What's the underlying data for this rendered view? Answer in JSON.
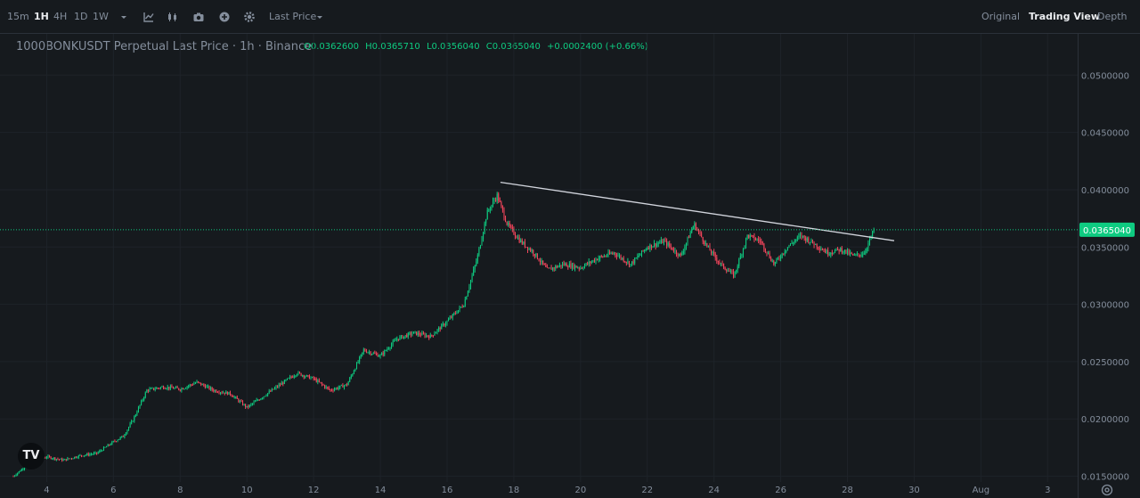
{
  "toolbar": {
    "intervals": [
      "15m",
      "1H",
      "4H",
      "1D",
      "1W"
    ],
    "active_interval": "1H",
    "price_type": "Last Price"
  },
  "view_modes": [
    "Original",
    "Trading View",
    "Depth"
  ],
  "active_view": "Trading View",
  "legend": {
    "title": "1000BONKUSDT Perpetual Last Price · 1h · Binance",
    "open": "O0.0362600",
    "high": "H0.0365710",
    "low": "L0.0356040",
    "close": "C0.0365040",
    "change": "+0.0002400 (+0.66%)"
  },
  "colors": {
    "up": "#0ecb81",
    "down": "#f6465d",
    "background": "#161a1e",
    "grid": "#1e2329",
    "trendline": "#d1d4dc",
    "price_line": "#0ecb81"
  },
  "logo_text": "TV",
  "chart_data": {
    "type": "candlestick",
    "symbol": "1000BONKUSDT Perpetual",
    "interval": "1h",
    "y_ticks": [
      "0.0500000",
      "0.0450000",
      "0.0400000",
      "0.0350000",
      "0.0300000",
      "0.0250000",
      "0.0200000",
      "0.0150000"
    ],
    "y_tick_values": [
      0.05,
      0.045,
      0.04,
      0.035,
      0.03,
      0.025,
      0.02,
      0.015
    ],
    "ylim": [
      0.0145,
      0.0536
    ],
    "x_ticks": [
      "4",
      "6",
      "8",
      "10",
      "12",
      "14",
      "16",
      "18",
      "20",
      "22",
      "24",
      "26",
      "28",
      "30",
      "Aug",
      "3"
    ],
    "x_tick_days": [
      4,
      6,
      8,
      10,
      12,
      14,
      16,
      18,
      20,
      22,
      24,
      26,
      28,
      30,
      32,
      34
    ],
    "xlim_days": [
      2.6,
      34.9
    ],
    "last_price": 0.036504,
    "last_price_label": "0.0365040",
    "price_path": [
      [
        3.0,
        0.015
      ],
      [
        3.5,
        0.0162
      ],
      [
        4.0,
        0.0167
      ],
      [
        4.5,
        0.0164
      ],
      [
        5.0,
        0.0168
      ],
      [
        5.5,
        0.017
      ],
      [
        6.0,
        0.018
      ],
      [
        6.3,
        0.0185
      ],
      [
        6.6,
        0.02
      ],
      [
        7.0,
        0.0225
      ],
      [
        7.5,
        0.0228
      ],
      [
        8.0,
        0.0226
      ],
      [
        8.5,
        0.0232
      ],
      [
        9.0,
        0.0225
      ],
      [
        9.5,
        0.0222
      ],
      [
        10.0,
        0.021
      ],
      [
        10.5,
        0.022
      ],
      [
        11.0,
        0.023
      ],
      [
        11.5,
        0.024
      ],
      [
        12.0,
        0.0235
      ],
      [
        12.5,
        0.0225
      ],
      [
        13.0,
        0.023
      ],
      [
        13.5,
        0.026
      ],
      [
        14.0,
        0.0255
      ],
      [
        14.5,
        0.027
      ],
      [
        15.0,
        0.0275
      ],
      [
        15.5,
        0.0272
      ],
      [
        16.0,
        0.0285
      ],
      [
        16.5,
        0.03
      ],
      [
        16.9,
        0.034
      ],
      [
        17.2,
        0.038
      ],
      [
        17.5,
        0.0395
      ],
      [
        17.8,
        0.037
      ],
      [
        18.2,
        0.0355
      ],
      [
        18.6,
        0.0345
      ],
      [
        19.0,
        0.033
      ],
      [
        19.5,
        0.0335
      ],
      [
        20.0,
        0.0332
      ],
      [
        20.5,
        0.034
      ],
      [
        21.0,
        0.0345
      ],
      [
        21.5,
        0.0335
      ],
      [
        22.0,
        0.035
      ],
      [
        22.5,
        0.0355
      ],
      [
        23.0,
        0.0342
      ],
      [
        23.4,
        0.037
      ],
      [
        23.8,
        0.035
      ],
      [
        24.2,
        0.0335
      ],
      [
        24.6,
        0.0325
      ],
      [
        25.0,
        0.036
      ],
      [
        25.4,
        0.0355
      ],
      [
        25.8,
        0.0335
      ],
      [
        26.2,
        0.035
      ],
      [
        26.6,
        0.036
      ],
      [
        27.0,
        0.0353
      ],
      [
        27.4,
        0.0345
      ],
      [
        27.8,
        0.0348
      ],
      [
        28.2,
        0.0342
      ],
      [
        28.5,
        0.0345
      ],
      [
        28.8,
        0.0365
      ]
    ],
    "trendline": {
      "start": [
        17.6,
        0.04065
      ],
      "end": [
        29.4,
        0.03555
      ]
    }
  }
}
